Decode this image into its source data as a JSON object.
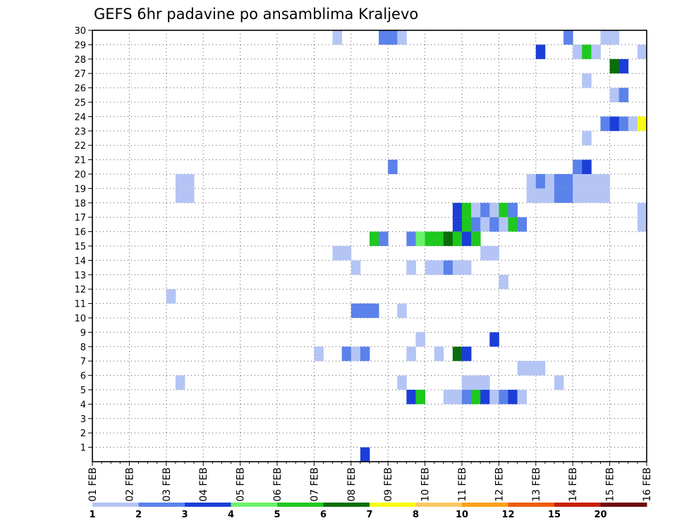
{
  "chart_data": {
    "type": "heatmap",
    "title": "GEFS 6hr padavine po ansamblima Kraljevo",
    "xlabel": "",
    "ylabel": "",
    "x_tick_labels": [
      "01 FEB",
      "02 FEB",
      "03 FEB",
      "04 FEB",
      "05 FEB",
      "06 FEB",
      "07 FEB",
      "08 FEB",
      "09 FEB",
      "10 FEB",
      "11 FEB",
      "12 FEB",
      "13 FEB",
      "14 FEB",
      "15 FEB",
      "16 FEB"
    ],
    "y_tick_labels": [
      "1",
      "2",
      "3",
      "4",
      "5",
      "6",
      "7",
      "8",
      "9",
      "10",
      "11",
      "12",
      "13",
      "14",
      "15",
      "16",
      "17",
      "18",
      "19",
      "20",
      "21",
      "22",
      "23",
      "24",
      "25",
      "26",
      "27",
      "28",
      "29",
      "30"
    ],
    "x_range_hours": [
      0,
      360
    ],
    "step_hours": 6,
    "y_range": [
      0,
      30
    ],
    "grid": true,
    "colorbar": {
      "position": "bottom",
      "labels": [
        "1",
        "2",
        "3",
        "4",
        "5",
        "6",
        "7",
        "8",
        "10",
        "12",
        "15",
        "20"
      ],
      "colors": [
        "#b4c5f5",
        "#5a82ea",
        "#1c3ed8",
        "#6af26a",
        "#1ec81e",
        "#0a6e0a",
        "#fafa14",
        "#fac864",
        "#faa019",
        "#f05a0a",
        "#c81e0a",
        "#6e0a0a"
      ]
    },
    "cells": [
      {
        "m": 29,
        "h": [
          156,
          186,
          192,
          198,
          306,
          330,
          336
        ]
      },
      {
        "m": 28,
        "h": [
          288,
          312,
          318,
          324,
          354
        ]
      },
      {
        "m": 27,
        "h": [
          336,
          342
        ]
      },
      {
        "m": 26,
        "h": [
          318
        ]
      },
      {
        "m": 25,
        "h": [
          336,
          342
        ]
      },
      {
        "m": 23,
        "h": [
          330,
          336,
          342,
          348,
          354
        ]
      },
      {
        "m": 22,
        "h": [
          318
        ]
      },
      {
        "m": 20,
        "h": [
          192,
          312,
          318
        ]
      },
      {
        "m": 19,
        "h": [
          54,
          60,
          282,
          288,
          294,
          300,
          306,
          312,
          318,
          324,
          330
        ]
      },
      {
        "m": 18,
        "h": [
          54,
          60,
          282,
          288,
          294,
          300,
          306,
          312,
          318,
          324,
          330
        ]
      },
      {
        "m": 17,
        "h": [
          234,
          240,
          246,
          252,
          258,
          264,
          270,
          354
        ]
      },
      {
        "m": 16,
        "h": [
          234,
          240,
          246,
          252,
          258,
          264,
          270,
          276,
          354
        ]
      },
      {
        "m": 15,
        "h": [
          180,
          186,
          204,
          210,
          216,
          222,
          228,
          234,
          240,
          246
        ]
      },
      {
        "m": 14,
        "h": [
          156,
          162,
          252,
          258
        ]
      },
      {
        "m": 13,
        "h": [
          168,
          204,
          216,
          222,
          228,
          234,
          240
        ]
      },
      {
        "m": 12,
        "h": [
          264
        ]
      },
      {
        "m": 11,
        "h": [
          48
        ]
      },
      {
        "m": 10,
        "h": [
          168,
          174,
          180,
          198
        ]
      },
      {
        "m": 8,
        "h": [
          210,
          258
        ]
      },
      {
        "m": 7,
        "h": [
          144,
          162,
          168,
          174,
          204,
          222,
          234,
          240
        ]
      },
      {
        "m": 6,
        "h": [
          276,
          282,
          288
        ]
      },
      {
        "m": 5,
        "h": [
          54,
          198,
          240,
          246,
          252,
          300
        ]
      },
      {
        "m": 4,
        "h": [
          204,
          210,
          228,
          234,
          240,
          246,
          252,
          258,
          264,
          270,
          276
        ]
      },
      {
        "m": 0,
        "h": [
          174
        ]
      }
    ],
    "cell_values": [
      [
        1,
        2,
        2,
        1,
        2,
        1,
        1
      ],
      [
        3,
        1,
        5,
        1,
        1
      ],
      [
        6,
        3
      ],
      [
        1
      ],
      [
        1,
        2
      ],
      [
        2,
        3,
        2,
        1,
        7
      ],
      [
        1
      ],
      [
        2,
        2,
        3
      ],
      [
        1,
        1,
        1,
        2,
        1,
        2,
        2,
        1,
        1,
        1,
        1
      ],
      [
        1,
        1,
        1,
        1,
        1,
        2,
        2,
        1,
        1,
        1,
        1
      ],
      [
        3,
        5,
        1,
        2,
        1,
        5,
        2,
        1
      ],
      [
        3,
        5,
        2,
        1,
        2,
        1,
        5,
        2,
        1
      ],
      [
        5,
        2,
        2,
        4,
        5,
        5,
        6,
        5,
        3,
        5
      ],
      [
        1,
        1,
        1,
        1
      ],
      [
        1,
        1,
        1,
        1,
        2,
        1,
        1
      ],
      [
        1
      ],
      [
        1
      ],
      [
        2,
        2,
        2,
        1
      ],
      [
        1,
        3
      ],
      [
        1,
        2,
        1,
        2,
        1,
        1,
        6,
        3
      ],
      [
        1,
        1,
        1
      ],
      [
        1,
        1,
        1,
        1,
        1,
        1
      ],
      [
        3,
        5,
        1,
        1,
        2,
        5,
        3,
        1,
        2,
        3,
        1
      ],
      [
        3
      ]
    ]
  }
}
